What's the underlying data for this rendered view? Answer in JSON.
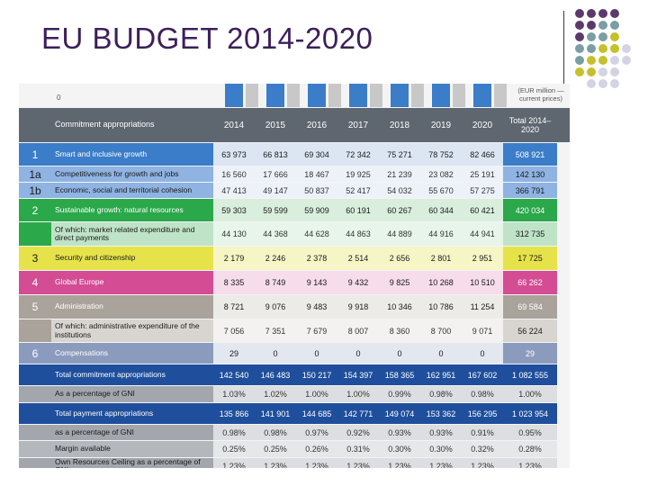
{
  "slide": {
    "title": "EU BUDGET 2014-2020"
  },
  "palette": {
    "title": "#3d1f5c",
    "purple": "#5b3a6b",
    "teal": "#7a9ea3",
    "olive": "#c4c12a",
    "lavender": "#d3d3e4"
  },
  "table": {
    "zero_label": "0",
    "unit_note": "(EUR million — current prices)",
    "header": {
      "label": "Commitment appropriations",
      "years": [
        "2014",
        "2015",
        "2016",
        "2017",
        "2018",
        "2019",
        "2020"
      ],
      "total": "Total 2014–2020"
    },
    "rows": [
      {
        "idx": "1",
        "label": "Smart and inclusive growth",
        "values": [
          "63 973",
          "66 813",
          "69 304",
          "72 342",
          "75 271",
          "78 752",
          "82 466"
        ],
        "total": "508 921",
        "idx_bg": "#3b7dc9",
        "label_bg": "#3b7dc9",
        "num_bg": "#dce6f3",
        "tot_bg": "#3b7dc9",
        "label_fg": "#ffffff",
        "num_fg": "#1a1a1a",
        "tot_fg": "#ffffff",
        "idx_fg": "#ffffff"
      },
      {
        "idx": "1a",
        "label": "Competitiveness for growth and jobs",
        "values": [
          "16 560",
          "17 666",
          "18 467",
          "19 925",
          "21 239",
          "23 082",
          "25 191"
        ],
        "total": "142 130",
        "idx_bg": "#8fb3e2",
        "label_bg": "#8fb3e2",
        "num_bg": "#edf2f9",
        "tot_bg": "#8fb3e2",
        "label_fg": "#1a1a1a",
        "num_fg": "#333333",
        "tot_fg": "#1a1a1a",
        "idx_fg": "#1a1a1a"
      },
      {
        "idx": "1b",
        "label": "Economic, social and territorial cohesion",
        "values": [
          "47 413",
          "49 147",
          "50 837",
          "52 417",
          "54 032",
          "55 670",
          "57 275"
        ],
        "total": "366 791",
        "idx_bg": "#8fb3e2",
        "label_bg": "#8fb3e2",
        "num_bg": "#edf2f9",
        "tot_bg": "#8fb3e2",
        "label_fg": "#1a1a1a",
        "num_fg": "#333333",
        "tot_fg": "#1a1a1a",
        "idx_fg": "#1a1a1a"
      },
      {
        "idx": "2",
        "label": "Sustainable growth: natural resources",
        "values": [
          "59 303",
          "59 599",
          "59 909",
          "60 191",
          "60 267",
          "60 344",
          "60 421"
        ],
        "total": "420 034",
        "idx_bg": "#2aa84a",
        "label_bg": "#2aa84a",
        "num_bg": "#d9eedd",
        "tot_bg": "#2aa84a",
        "label_fg": "#ffffff",
        "num_fg": "#1a1a1a",
        "tot_fg": "#ffffff",
        "idx_fg": "#ffffff"
      },
      {
        "idx": "",
        "label": "Of which: market related expenditure and direct payments",
        "values": [
          "44 130",
          "44 368",
          "44 628",
          "44 863",
          "44 889",
          "44 916",
          "44 941"
        ],
        "total": "312 735",
        "idx_bg": "#2aa84a",
        "label_bg": "#bfe3c7",
        "num_bg": "#e8f5ea",
        "tot_bg": "#bfe3c7",
        "label_fg": "#1a1a1a",
        "num_fg": "#333333",
        "tot_fg": "#1a1a1a",
        "idx_fg": "#ffffff"
      },
      {
        "idx": "3",
        "label": "Security and citizenship",
        "values": [
          "2 179",
          "2 246",
          "2 378",
          "2 514",
          "2 656",
          "2 801",
          "2 951"
        ],
        "total": "17 725",
        "idx_bg": "#e6e34a",
        "label_bg": "#e6e34a",
        "num_bg": "#f6f5c6",
        "tot_bg": "#e6e34a",
        "label_fg": "#1a1a1a",
        "num_fg": "#1a1a1a",
        "tot_fg": "#1a1a1a",
        "idx_fg": "#1a1a1a"
      },
      {
        "idx": "4",
        "label": "Global Europe",
        "values": [
          "8 335",
          "8 749",
          "9 143",
          "9 432",
          "9 825",
          "10 268",
          "10 510"
        ],
        "total": "66 262",
        "idx_bg": "#d44c94",
        "label_bg": "#d44c94",
        "num_bg": "#f7dceb",
        "tot_bg": "#d44c94",
        "label_fg": "#ffffff",
        "num_fg": "#1a1a1a",
        "tot_fg": "#ffffff",
        "idx_fg": "#ffffff"
      },
      {
        "idx": "5",
        "label": "Administration",
        "values": [
          "8 721",
          "9 076",
          "9 483",
          "9 918",
          "10 346",
          "10 786",
          "11 254"
        ],
        "total": "69 584",
        "idx_bg": "#a9a39b",
        "label_bg": "#a9a39b",
        "num_bg": "#ecebe8",
        "tot_bg": "#a9a39b",
        "label_fg": "#ffffff",
        "num_fg": "#1a1a1a",
        "tot_fg": "#ffffff",
        "idx_fg": "#ffffff"
      },
      {
        "idx": "",
        "label": "Of which: administrative expenditure of the institutions",
        "values": [
          "7 056",
          "7 351",
          "7 679",
          "8 007",
          "8 360",
          "8 700",
          "9 071"
        ],
        "total": "56 224",
        "idx_bg": "#a9a39b",
        "label_bg": "#d8d5d0",
        "num_bg": "#f3f2f0",
        "tot_bg": "#d8d5d0",
        "label_fg": "#1a1a1a",
        "num_fg": "#333333",
        "tot_fg": "#1a1a1a",
        "idx_fg": "#ffffff"
      },
      {
        "idx": "6",
        "label": "Compensations",
        "values": [
          "29",
          "0",
          "0",
          "0",
          "0",
          "0",
          "0"
        ],
        "total": "29",
        "idx_bg": "#8b9bbd",
        "label_bg": "#8b9bbd",
        "num_bg": "#e3e7f0",
        "tot_bg": "#8b9bbd",
        "label_fg": "#ffffff",
        "num_fg": "#1a1a1a",
        "tot_fg": "#ffffff",
        "idx_fg": "#ffffff"
      },
      {
        "idx": "",
        "label": "Total commitment appropriations",
        "values": [
          "142 540",
          "146 483",
          "150 217",
          "154 397",
          "158 365",
          "162 951",
          "167 602"
        ],
        "total": "1 082 555",
        "idx_bg": "#1f4f9c",
        "label_bg": "#1f4f9c",
        "num_bg": "#1f4f9c",
        "tot_bg": "#1f4f9c",
        "label_fg": "#ffffff",
        "num_fg": "#ffffff",
        "tot_fg": "#ffffff",
        "idx_fg": "#ffffff"
      },
      {
        "idx": "",
        "label": "As a percentage of GNI",
        "values": [
          "1.03%",
          "1.02%",
          "1.00%",
          "1.00%",
          "0.99%",
          "0.98%",
          "0.98%"
        ],
        "total": "1.00%",
        "idx_bg": "#a3a7ad",
        "label_bg": "#a3a7ad",
        "num_bg": "#dcdee1",
        "tot_bg": "#dcdee1",
        "label_fg": "#1a1a1a",
        "num_fg": "#333333",
        "tot_fg": "#333333",
        "idx_fg": "#1a1a1a"
      },
      {
        "idx": "",
        "label": "Total payment appropriations",
        "values": [
          "135 866",
          "141 901",
          "144 685",
          "142 771",
          "149 074",
          "153 362",
          "156 295"
        ],
        "total": "1 023 954",
        "idx_bg": "#1f4f9c",
        "label_bg": "#1f4f9c",
        "num_bg": "#1f4f9c",
        "tot_bg": "#1f4f9c",
        "label_fg": "#ffffff",
        "num_fg": "#ffffff",
        "tot_fg": "#ffffff",
        "idx_fg": "#ffffff"
      },
      {
        "idx": "",
        "label": "as a percentage of GNI",
        "values": [
          "0.98%",
          "0.98%",
          "0.97%",
          "0.92%",
          "0.93%",
          "0.93%",
          "0.91%"
        ],
        "total": "0.95%",
        "idx_bg": "#a3a7ad",
        "label_bg": "#a3a7ad",
        "num_bg": "#dcdee1",
        "tot_bg": "#dcdee1",
        "label_fg": "#1a1a1a",
        "num_fg": "#333333",
        "tot_fg": "#333333",
        "idx_fg": "#1a1a1a"
      },
      {
        "idx": "",
        "label": "Margin available",
        "values": [
          "0.25%",
          "0.25%",
          "0.26%",
          "0.31%",
          "0.30%",
          "0.30%",
          "0.32%"
        ],
        "total": "0.28%",
        "idx_bg": "#b4b8bd",
        "label_bg": "#b4b8bd",
        "num_bg": "#e6e7e9",
        "tot_bg": "#e6e7e9",
        "label_fg": "#1a1a1a",
        "num_fg": "#333333",
        "tot_fg": "#333333",
        "idx_fg": "#1a1a1a"
      },
      {
        "idx": "",
        "label": "Own Resources Ceiling as a percentage of GNI",
        "values": [
          "1.23%",
          "1.23%",
          "1.23%",
          "1.23%",
          "1.23%",
          "1.23%",
          "1.23%"
        ],
        "total": "1.23%",
        "idx_bg": "#a3a7ad",
        "label_bg": "#a3a7ad",
        "num_bg": "#dcdee1",
        "tot_bg": "#dcdee1",
        "label_fg": "#1a1a1a",
        "num_fg": "#333333",
        "tot_fg": "#333333",
        "idx_fg": "#1a1a1a"
      }
    ]
  }
}
